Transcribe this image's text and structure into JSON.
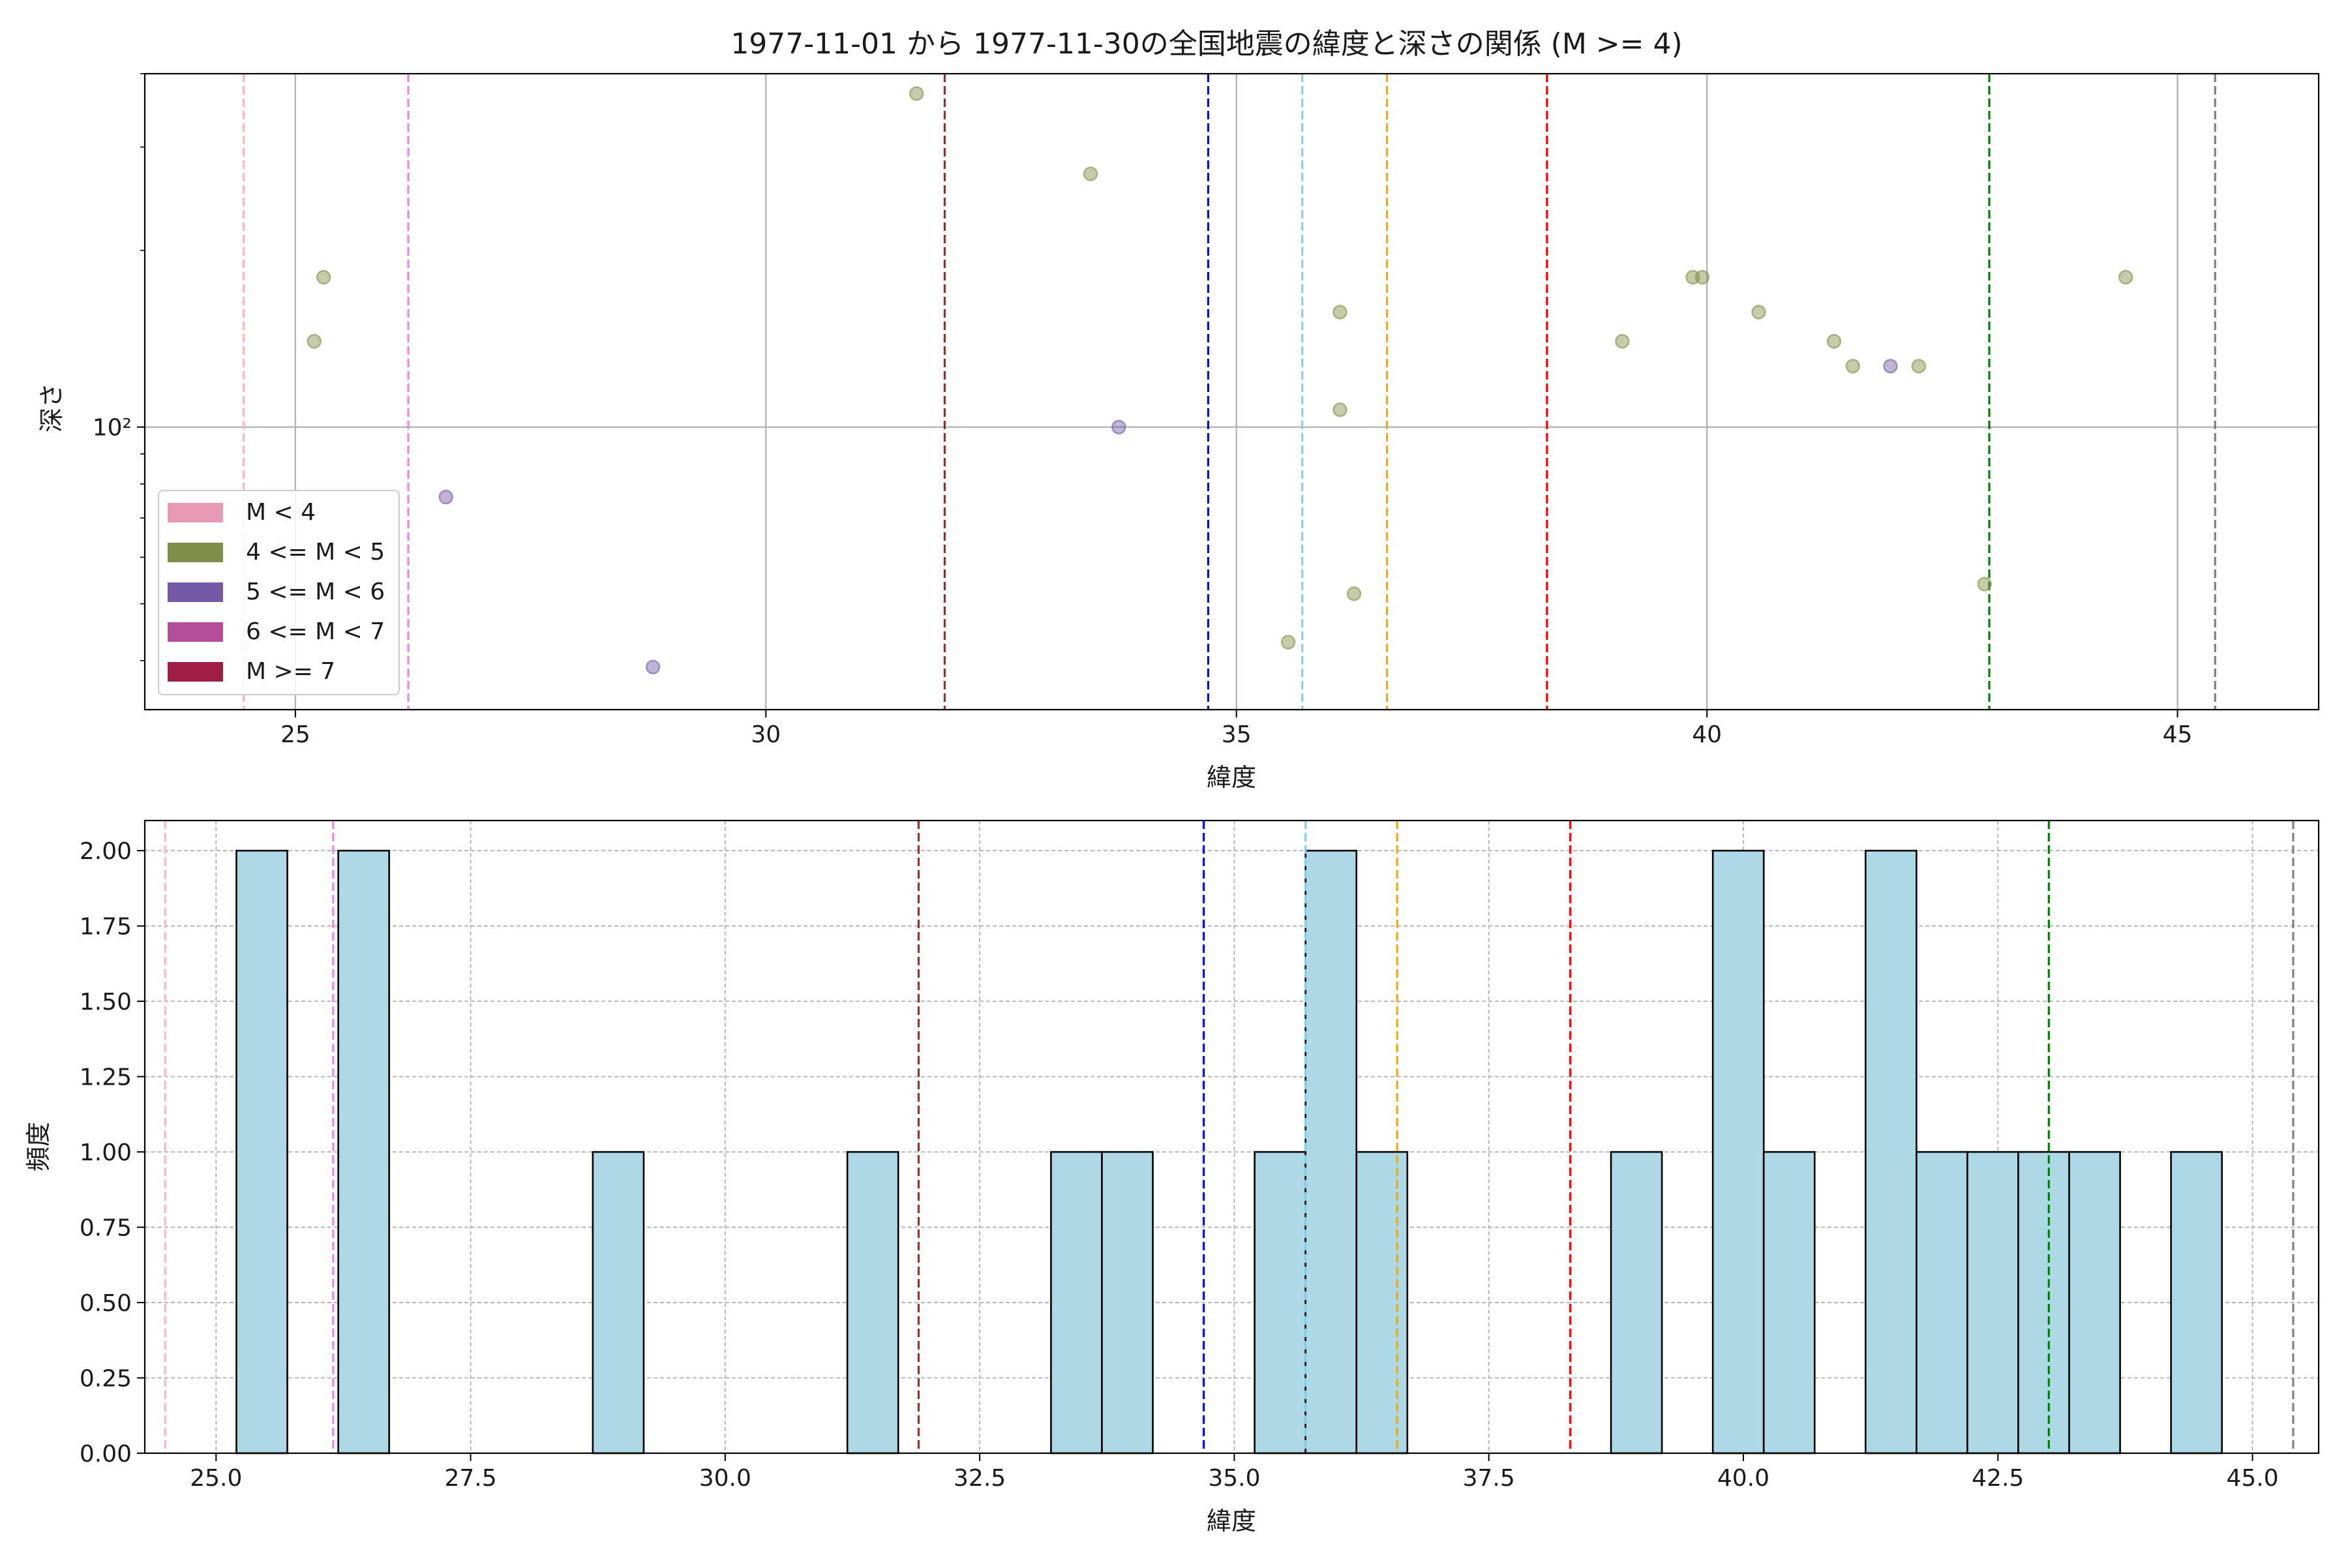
{
  "chart_data": [
    {
      "type": "scatter",
      "title": "1977-11-01 から 1977-11-30の全国地震の緯度と深さの関係 (M >= 4)",
      "xlabel": "緯度",
      "ylabel": "深さ",
      "xlim": [
        23.4,
        46.5
      ],
      "ylim": [
        33,
        400
      ],
      "y_scale": "log",
      "grid": true,
      "x_ticks": [
        25,
        30,
        35,
        40,
        45
      ],
      "x_tick_labels": [
        "25",
        "30",
        "35",
        "40",
        "45"
      ],
      "y_ticks": [
        100
      ],
      "y_tick_labels": [
        "10²"
      ],
      "legend": {
        "position": "lower-left",
        "entries": [
          {
            "label": "M < 4",
            "color": "#e899b4"
          },
          {
            "label": "4 <= M < 5",
            "color": "#7f8f48"
          },
          {
            "label": "5 <= M < 6",
            "color": "#745aa6"
          },
          {
            "label": "6 <= M < 7",
            "color": "#b44e9b"
          },
          {
            "label": "M >= 7",
            "color": "#a01e46"
          }
        ]
      },
      "series": [
        {
          "legend_index": 1,
          "color": "#7f8f48",
          "points": [
            {
              "x": 25.2,
              "y": 140
            },
            {
              "x": 25.3,
              "y": 180
            },
            {
              "x": 31.6,
              "y": 370
            },
            {
              "x": 33.45,
              "y": 270
            },
            {
              "x": 35.55,
              "y": 43
            },
            {
              "x": 36.1,
              "y": 107
            },
            {
              "x": 36.1,
              "y": 157
            },
            {
              "x": 36.25,
              "y": 52
            },
            {
              "x": 39.1,
              "y": 140
            },
            {
              "x": 39.85,
              "y": 180
            },
            {
              "x": 39.95,
              "y": 180
            },
            {
              "x": 40.55,
              "y": 157
            },
            {
              "x": 41.35,
              "y": 140
            },
            {
              "x": 41.55,
              "y": 127
            },
            {
              "x": 42.25,
              "y": 127
            },
            {
              "x": 42.95,
              "y": 54
            },
            {
              "x": 44.45,
              "y": 180
            }
          ]
        },
        {
          "legend_index": 2,
          "color": "#745aa6",
          "points": [
            {
              "x": 26.6,
              "y": 76
            },
            {
              "x": 28.8,
              "y": 39
            },
            {
              "x": 33.75,
              "y": 100
            },
            {
              "x": 41.95,
              "y": 127
            }
          ]
        }
      ],
      "vlines": [
        {
          "x": 24.45,
          "color": "#ffb6c1"
        },
        {
          "x": 26.2,
          "color": "#ee82ee"
        },
        {
          "x": 31.9,
          "color": "#a52a2a"
        },
        {
          "x": 34.7,
          "color": "#0000ff"
        },
        {
          "x": 35.7,
          "color": "#87ceeb"
        },
        {
          "x": 36.6,
          "color": "#ffa500"
        },
        {
          "x": 38.3,
          "color": "#ff0000"
        },
        {
          "x": 43.0,
          "color": "#008000"
        },
        {
          "x": 45.4,
          "color": "#808080"
        }
      ]
    },
    {
      "type": "bar",
      "xlabel": "緯度",
      "ylabel": "頻度",
      "xlim": [
        24.3,
        45.65
      ],
      "ylim": [
        0,
        2.1
      ],
      "grid": true,
      "bar_color": "#add8e6",
      "bin_width": 0.5,
      "x_ticks": [
        25,
        27.5,
        30,
        32.5,
        35,
        37.5,
        40,
        42.5,
        45
      ],
      "x_tick_labels": [
        "25.0",
        "27.5",
        "30.0",
        "32.5",
        "35.0",
        "37.5",
        "40.0",
        "42.5",
        "45.0"
      ],
      "y_ticks": [
        0,
        0.25,
        0.5,
        0.75,
        1,
        1.25,
        1.5,
        1.75,
        2
      ],
      "y_tick_labels": [
        "0.00",
        "0.25",
        "0.50",
        "0.75",
        "1.00",
        "1.25",
        "1.50",
        "1.75",
        "2.00"
      ],
      "bins": [
        {
          "x0": 25.2,
          "count": 2
        },
        {
          "x0": 26.2,
          "count": 2
        },
        {
          "x0": 28.7,
          "count": 1
        },
        {
          "x0": 31.2,
          "count": 1
        },
        {
          "x0": 33.2,
          "count": 1
        },
        {
          "x0": 33.7,
          "count": 1
        },
        {
          "x0": 35.2,
          "count": 1
        },
        {
          "x0": 35.7,
          "count": 2
        },
        {
          "x0": 36.2,
          "count": 1
        },
        {
          "x0": 38.7,
          "count": 1
        },
        {
          "x0": 39.7,
          "count": 2
        },
        {
          "x0": 40.2,
          "count": 1
        },
        {
          "x0": 41.2,
          "count": 2
        },
        {
          "x0": 41.7,
          "count": 1
        },
        {
          "x0": 42.2,
          "count": 1
        },
        {
          "x0": 42.7,
          "count": 1
        },
        {
          "x0": 43.2,
          "count": 1
        },
        {
          "x0": 44.2,
          "count": 1
        }
      ],
      "vlines": [
        {
          "x": 24.5,
          "color": "#ffb6c1"
        },
        {
          "x": 26.15,
          "color": "#ee82ee"
        },
        {
          "x": 31.9,
          "color": "#a52a2a"
        },
        {
          "x": 34.7,
          "color": "#0000ff"
        },
        {
          "x": 35.7,
          "color": "#87ceeb"
        },
        {
          "x": 36.6,
          "color": "#ffa500"
        },
        {
          "x": 38.3,
          "color": "#ff0000"
        },
        {
          "x": 43.0,
          "color": "#008000"
        },
        {
          "x": 45.4,
          "color": "#808080"
        }
      ]
    }
  ]
}
